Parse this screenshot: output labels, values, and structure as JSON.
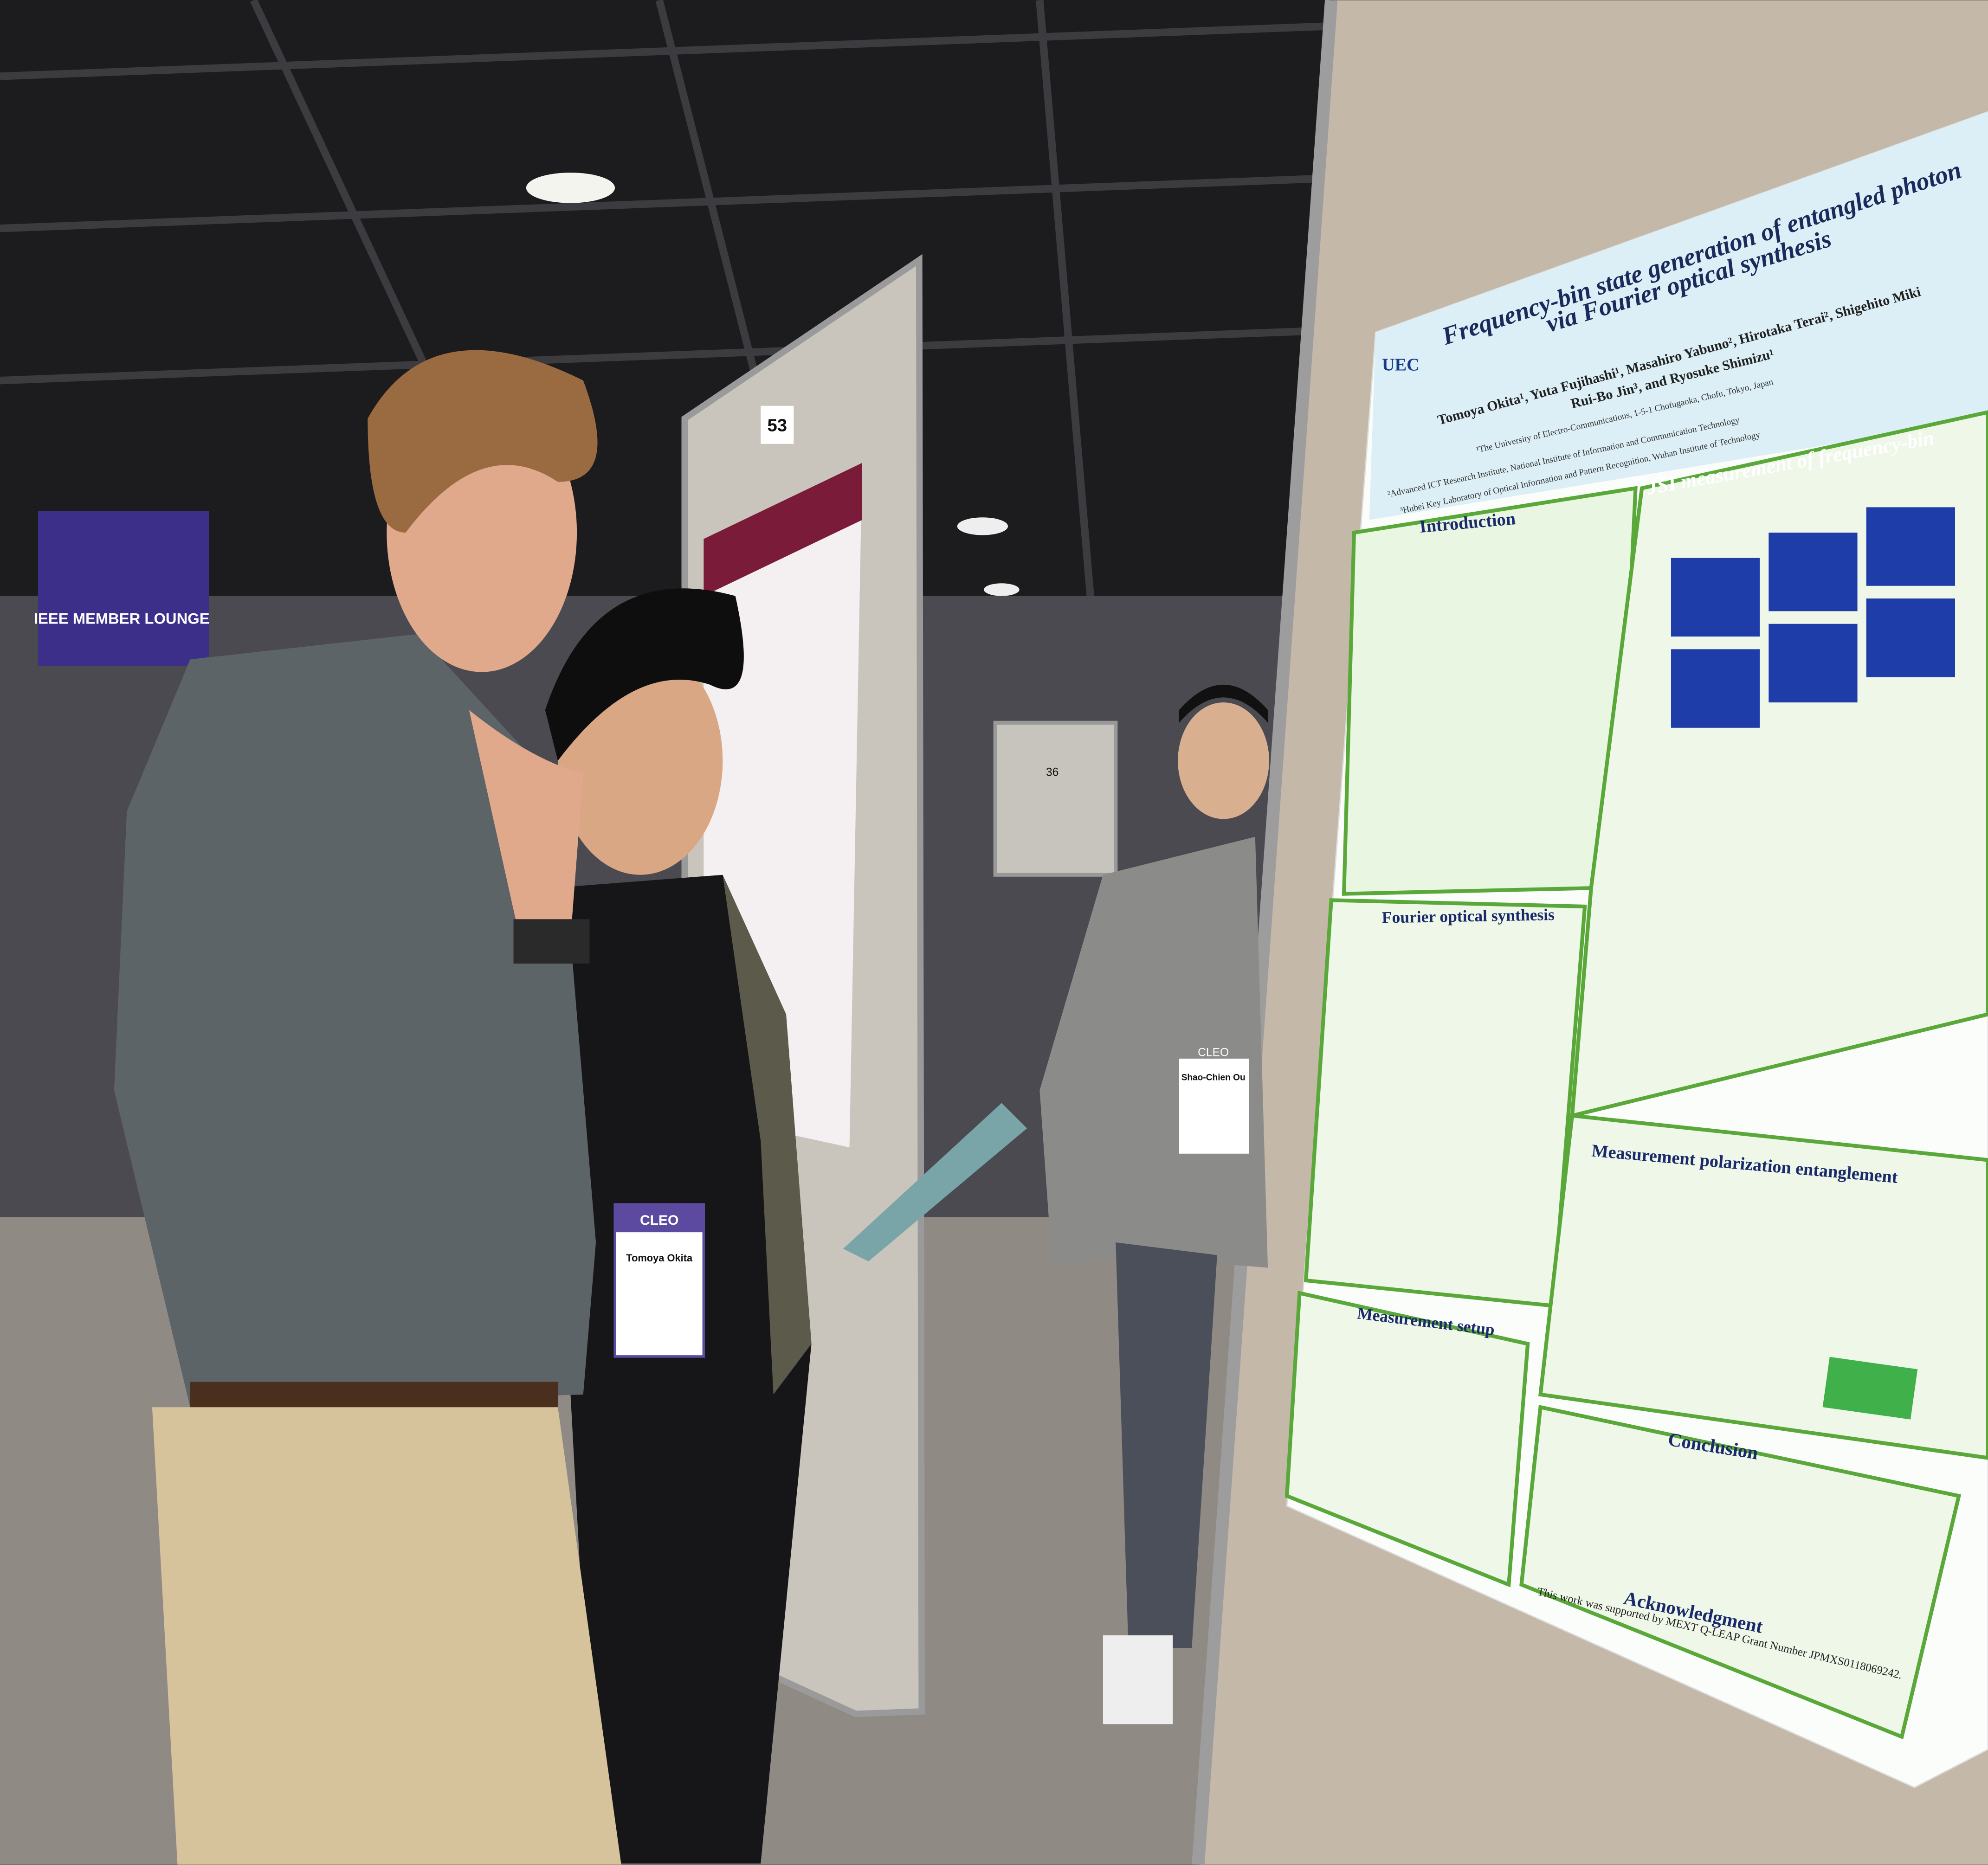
{
  "sign": {
    "text": "IEEE MEMBER LOUNGE"
  },
  "boards": {
    "left_number": "53",
    "middle_number": "36"
  },
  "poster": {
    "logo": "UEC",
    "title": [
      "Frequency-bin state generation of entangled photon",
      "via Fourier optical synthesis"
    ],
    "authors": [
      "Tomoya Okita¹, Yuta Fujihashi¹, Masahiro Yabuno², Hirotaka Terai², Shigehito Miki",
      "Rui-Bo Jin³, and Ryosuke Shimizu¹"
    ],
    "affiliations": [
      "¹The University of Electro-Communications, 1-5-1 Chofugaoka, Chofu, Tokyo, Japan",
      "²Advanced ICT Research Institute, National Institute of Information and Communication Technology",
      "³Hubei Key Laboratory of Optical Information and Pattern Recognition, Wuhan Institute of Technology"
    ],
    "sections": [
      "Introduction",
      "JSI measurement of frequency-bin",
      "Fourier optical synthesis",
      "Measurement polarization entanglement",
      "Measurement setup",
      "Conclusion",
      "Acknowledgment"
    ],
    "acknowledgment_text": "This work was supported by MEXT Q-LEAP Grant Number JPMXS0118069242."
  },
  "badges": [
    {
      "event": "CLEO",
      "name": "Tomoya Okita"
    },
    {
      "event": "CLEO",
      "name": "Shao-Chien Ou"
    }
  ]
}
